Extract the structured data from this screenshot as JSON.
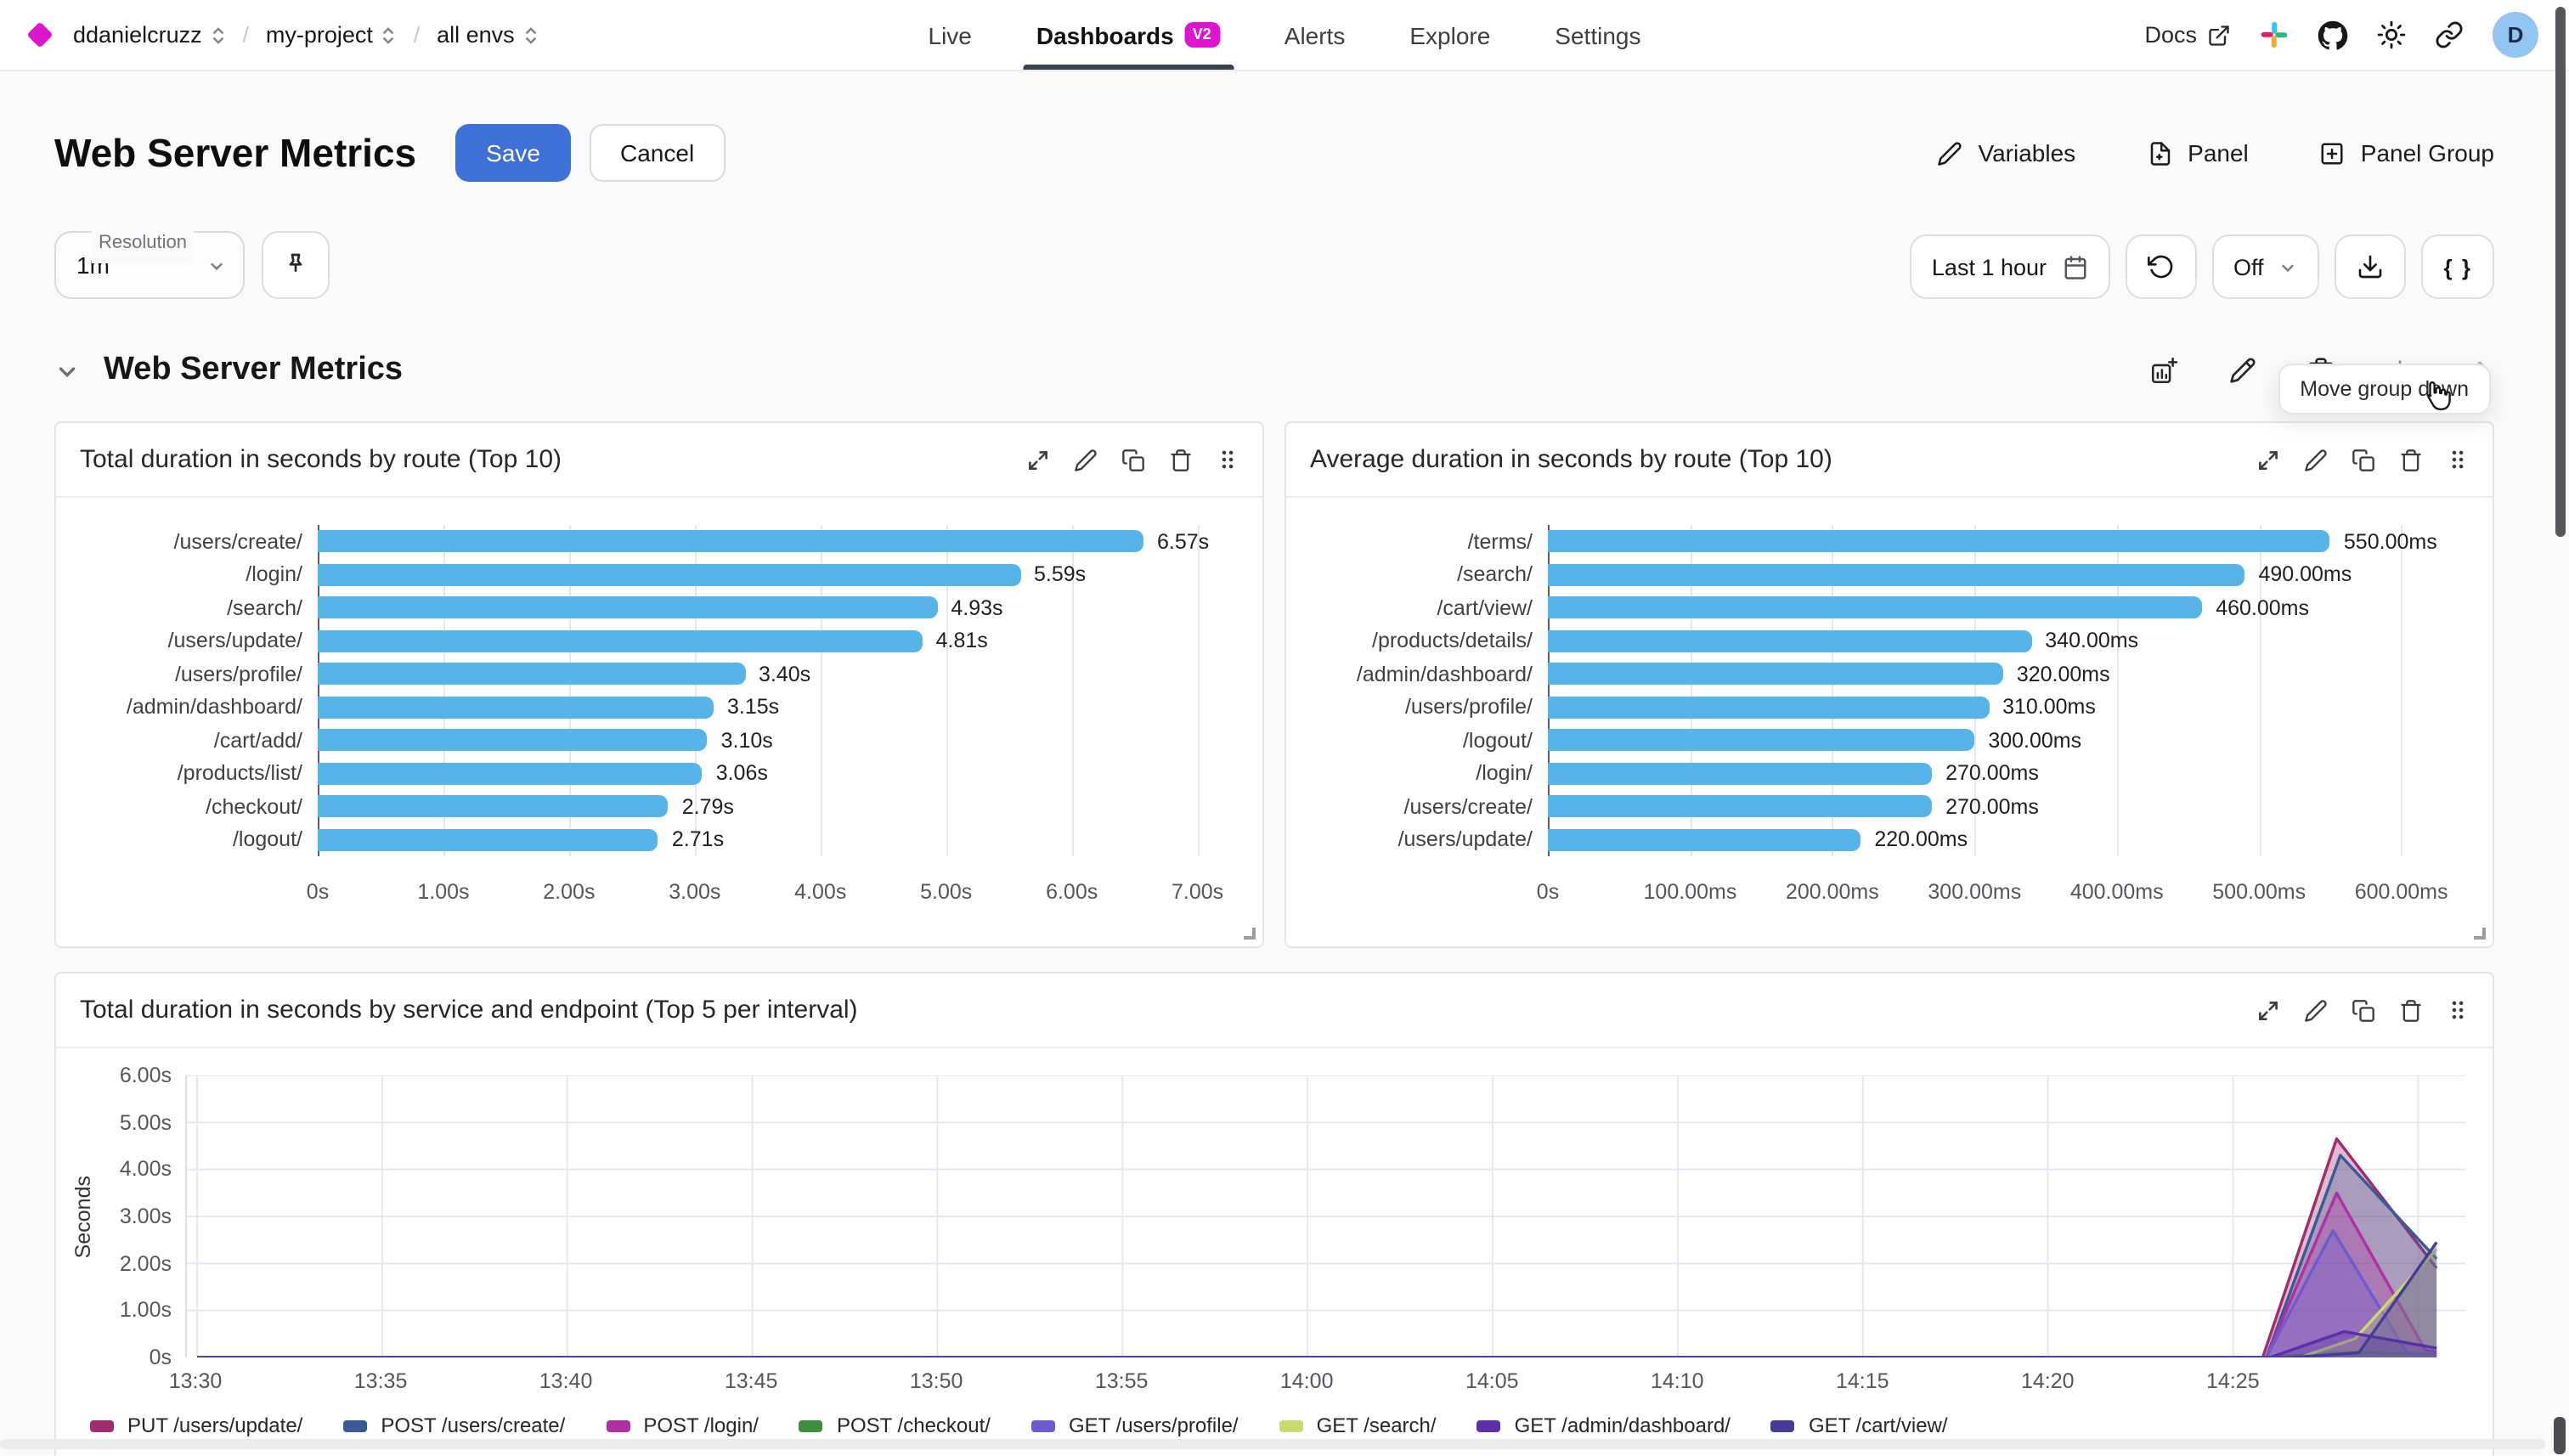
{
  "colors": {
    "accent_blue": "#3E70D8",
    "brand_magenta": "#DD16CE",
    "bar_blue": "#58B3E8",
    "active_tab_underline": "#39404F",
    "avatar_bg": "#92C5F2"
  },
  "nav": {
    "breadcrumb": [
      {
        "label": "ddanielcruzz"
      },
      {
        "label": "my-project"
      },
      {
        "label": "all envs"
      }
    ],
    "tabs": [
      {
        "label": "Live"
      },
      {
        "label": "Dashboards",
        "badge": "V2",
        "active": true
      },
      {
        "label": "Alerts"
      },
      {
        "label": "Explore"
      },
      {
        "label": "Settings"
      }
    ],
    "docs_label": "Docs",
    "icons": [
      "slack-icon",
      "github-icon",
      "theme-sun-icon",
      "share-link-icon"
    ],
    "avatar_letter": "D"
  },
  "header": {
    "title": "Web Server Metrics",
    "save_label": "Save",
    "cancel_label": "Cancel",
    "actions": [
      {
        "label": "Variables",
        "icon": "pencil-icon"
      },
      {
        "label": "Panel",
        "icon": "file-plus-icon"
      },
      {
        "label": "Panel Group",
        "icon": "plus-square-icon"
      }
    ]
  },
  "controls": {
    "resolution_label": "Resolution",
    "resolution_value": "1m",
    "pin_icon": "pin-icon",
    "time_range": "Last 1 hour",
    "refresh_value": "Off",
    "code_button": "{ }",
    "tooltip": "Move group down"
  },
  "group": {
    "title": "Web Server Metrics",
    "actions": [
      "add-panel",
      "edit",
      "delete",
      "move-down",
      "move-up"
    ]
  },
  "panel_actions": [
    "expand",
    "edit",
    "clone",
    "delete",
    "drag"
  ],
  "chart_data": [
    {
      "id": "total-duration-by-route",
      "type": "bar",
      "orientation": "horizontal",
      "title": "Total duration in seconds by route (Top 10)",
      "categories": [
        "/users/create/",
        "/login/",
        "/search/",
        "/users/update/",
        "/users/profile/",
        "/admin/dashboard/",
        "/cart/add/",
        "/products/list/",
        "/checkout/",
        "/logout/"
      ],
      "values": [
        6.57,
        5.59,
        4.93,
        4.81,
        3.4,
        3.15,
        3.1,
        3.06,
        2.79,
        2.71
      ],
      "value_labels": [
        "6.57s",
        "5.59s",
        "4.93s",
        "4.81s",
        "3.40s",
        "3.15s",
        "3.10s",
        "3.06s",
        "2.79s",
        "2.71s"
      ],
      "x_ticks": [
        {
          "v": 0,
          "label": "0s"
        },
        {
          "v": 1,
          "label": "1.00s"
        },
        {
          "v": 2,
          "label": "2.00s"
        },
        {
          "v": 3,
          "label": "3.00s"
        },
        {
          "v": 4,
          "label": "4.00s"
        },
        {
          "v": 5,
          "label": "5.00s"
        },
        {
          "v": 6,
          "label": "6.00s"
        },
        {
          "v": 7,
          "label": "7.00s"
        }
      ],
      "axis_max": 7.3,
      "bar_color": "#58B3E8",
      "grid": true
    },
    {
      "id": "avg-duration-by-route",
      "type": "bar",
      "orientation": "horizontal",
      "title": "Average duration in seconds by route (Top 10)",
      "categories": [
        "/terms/",
        "/search/",
        "/cart/view/",
        "/products/details/",
        "/admin/dashboard/",
        "/users/profile/",
        "/logout/",
        "/login/",
        "/users/create/",
        "/users/update/"
      ],
      "values": [
        550,
        490,
        460,
        340,
        320,
        310,
        300,
        270,
        270,
        220
      ],
      "value_labels": [
        "550.00ms",
        "490.00ms",
        "460.00ms",
        "340.00ms",
        "320.00ms",
        "310.00ms",
        "300.00ms",
        "270.00ms",
        "270.00ms",
        "220.00ms"
      ],
      "x_ticks": [
        {
          "v": 0,
          "label": "0s"
        },
        {
          "v": 100,
          "label": "100.00ms"
        },
        {
          "v": 200,
          "label": "200.00ms"
        },
        {
          "v": 300,
          "label": "300.00ms"
        },
        {
          "v": 400,
          "label": "400.00ms"
        },
        {
          "v": 500,
          "label": "500.00ms"
        },
        {
          "v": 600,
          "label": "600.00ms"
        }
      ],
      "axis_max": 645,
      "bar_color": "#58B3E8",
      "grid": true
    },
    {
      "id": "duration-by-service-endpoint",
      "type": "area",
      "title": "Total duration in seconds by service and endpoint (Top 5 per interval)",
      "ylabel": "Seconds",
      "ylim": [
        0,
        6
      ],
      "y_ticks": [
        {
          "v": 6,
          "label": "6.00s"
        },
        {
          "v": 5,
          "label": "5.00s"
        },
        {
          "v": 4,
          "label": "4.00s"
        },
        {
          "v": 3,
          "label": "3.00s"
        },
        {
          "v": 2,
          "label": "2.00s"
        },
        {
          "v": 1,
          "label": "1.00s"
        },
        {
          "v": 0,
          "label": "0s"
        }
      ],
      "x_range_minutes": [
        0,
        61
      ],
      "x_ticks": [
        {
          "m": 0,
          "label": "13:30"
        },
        {
          "m": 5,
          "label": "13:35"
        },
        {
          "m": 10,
          "label": "13:40"
        },
        {
          "m": 15,
          "label": "13:45"
        },
        {
          "m": 20,
          "label": "13:50"
        },
        {
          "m": 25,
          "label": "13:55"
        },
        {
          "m": 30,
          "label": "14:00"
        },
        {
          "m": 35,
          "label": "14:05"
        },
        {
          "m": 40,
          "label": "14:10"
        },
        {
          "m": 45,
          "label": "14:15"
        },
        {
          "m": 50,
          "label": "14:20"
        },
        {
          "m": 55,
          "label": "14:25"
        },
        {
          "m": 60,
          "label": ""
        }
      ],
      "legend_position": "bottom",
      "grid": true,
      "series": [
        {
          "name": "PUT /users/update/",
          "color": "#A02C6C",
          "points": [
            [
              0,
              0
            ],
            [
              55.8,
              0
            ],
            [
              57.8,
              4.65
            ],
            [
              60.5,
              1.9
            ]
          ]
        },
        {
          "name": "POST /users/create/",
          "color": "#3A5A96",
          "points": [
            [
              0,
              0
            ],
            [
              55.9,
              0
            ],
            [
              57.9,
              4.3
            ],
            [
              60.5,
              2.1
            ]
          ]
        },
        {
          "name": "POST /login/",
          "color": "#AF30A5",
          "points": [
            [
              0,
              0
            ],
            [
              55.9,
              0
            ],
            [
              57.8,
              3.5
            ],
            [
              60.2,
              0.15
            ],
            [
              60.5,
              0.12
            ]
          ]
        },
        {
          "name": "POST /checkout/",
          "color": "#3E8E3E",
          "points": [
            [
              0,
              0
            ],
            [
              56.0,
              0
            ],
            [
              58.0,
              0.12
            ],
            [
              60.5,
              0.05
            ]
          ]
        },
        {
          "name": "GET /users/profile/",
          "color": "#6A5BD1",
          "points": [
            [
              0,
              0
            ],
            [
              55.9,
              0
            ],
            [
              57.7,
              2.7
            ],
            [
              59.7,
              0.1
            ],
            [
              60.5,
              0.08
            ]
          ]
        },
        {
          "name": "GET /search/",
          "color": "#C9DA70",
          "points": [
            [
              0,
              0
            ],
            [
              56.8,
              0
            ],
            [
              58.3,
              0.4
            ],
            [
              60.5,
              2.3
            ]
          ]
        },
        {
          "name": "GET /admin/dashboard/",
          "color": "#5B2FA8",
          "points": [
            [
              0,
              0
            ],
            [
              56.0,
              0
            ],
            [
              58.0,
              0.55
            ],
            [
              60.5,
              0.2
            ]
          ]
        },
        {
          "name": "GET /cart/view/",
          "color": "#453B99",
          "points": [
            [
              0,
              0
            ],
            [
              56.6,
              0
            ],
            [
              58.4,
              0.1
            ],
            [
              60.5,
              2.45
            ]
          ]
        }
      ]
    }
  ]
}
